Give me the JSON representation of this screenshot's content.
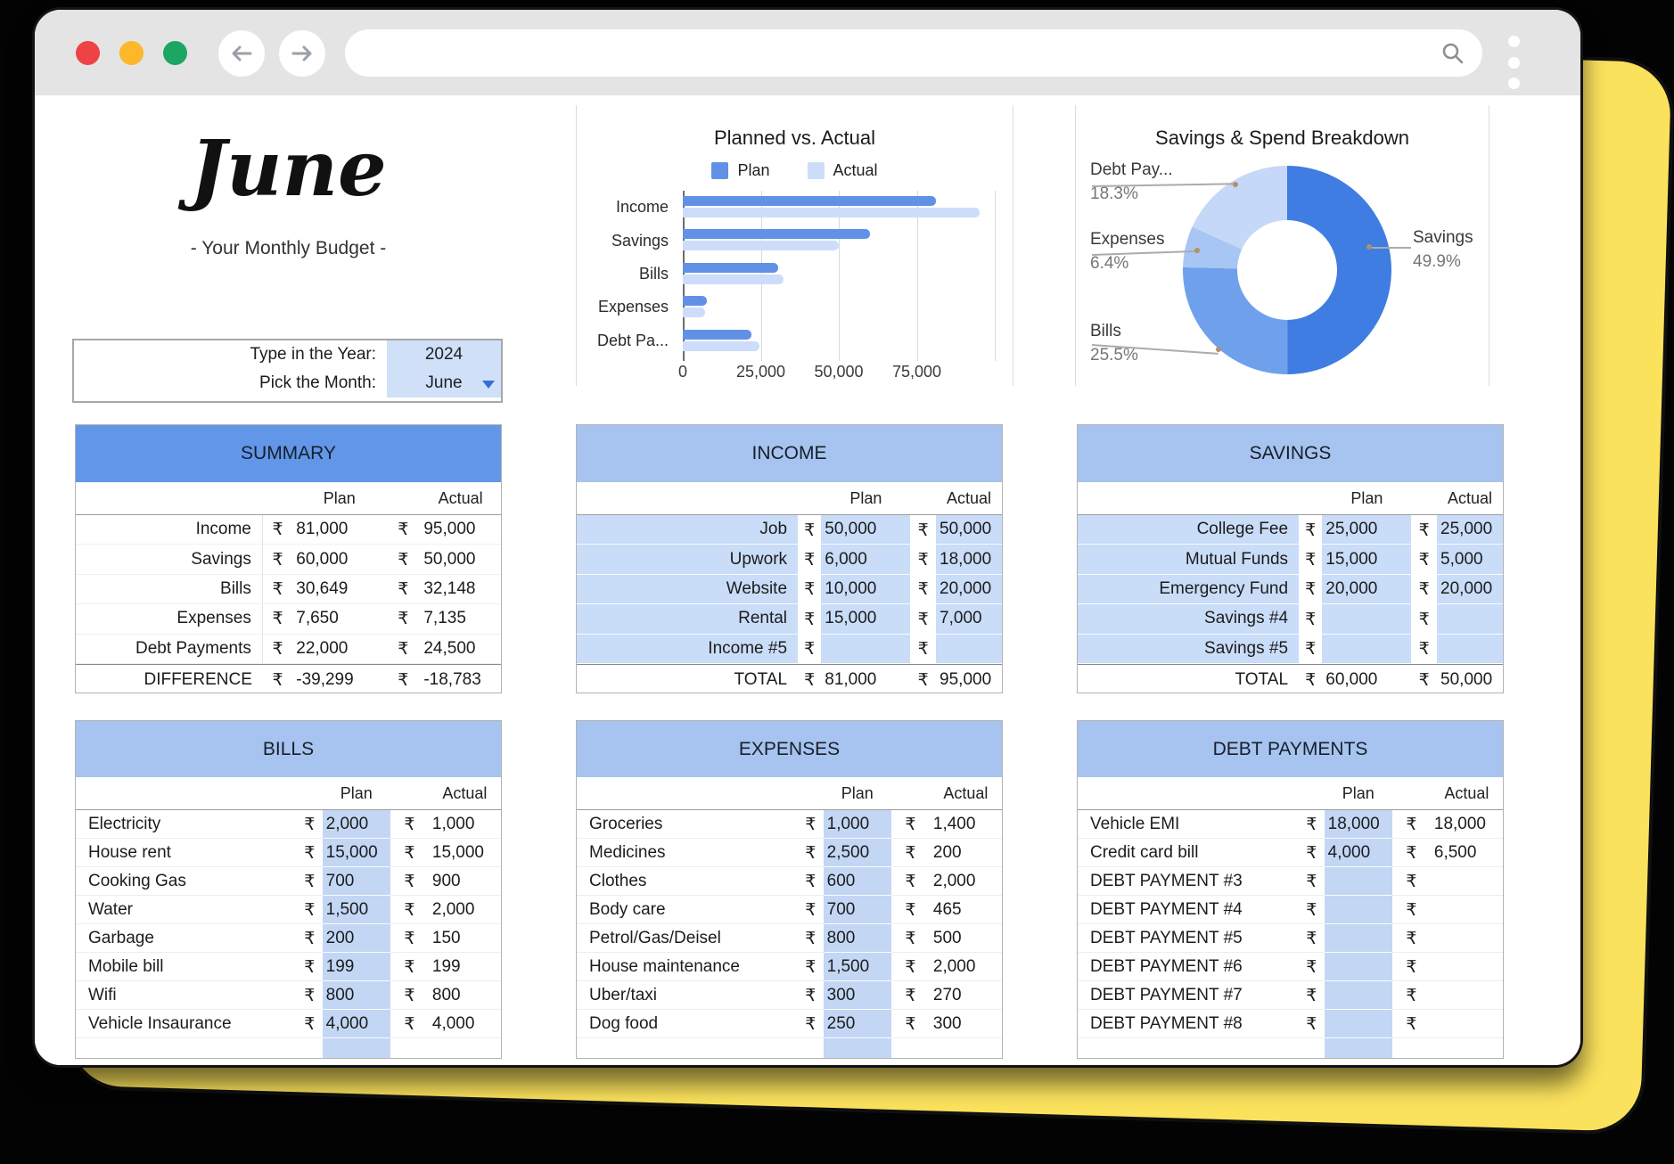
{
  "browser": {
    "url_value": "",
    "icons": {
      "back": "arrow-left-icon",
      "forward": "arrow-right-icon",
      "search": "search-icon",
      "menu": "vertical-dots-icon"
    }
  },
  "header": {
    "month_title": "June",
    "subtitle": "- Your Monthly Budget -",
    "year_label": "Type in the Year:",
    "year_value": "2024",
    "month_label": "Pick the Month:",
    "month_value": "June"
  },
  "currency": "₹",
  "chart_data": [
    {
      "type": "bar",
      "orientation": "horizontal",
      "title": "Planned vs. Actual",
      "categories": [
        "Income",
        "Savings",
        "Bills",
        "Expenses",
        "Debt Pa..."
      ],
      "series": [
        {
          "name": "Plan",
          "color": "#6191e6",
          "values": [
            81000,
            60000,
            30649,
            7650,
            22000
          ]
        },
        {
          "name": "Actual",
          "color": "#cdddf9",
          "values": [
            95000,
            50000,
            32148,
            7135,
            24500
          ]
        }
      ],
      "xlim": [
        0,
        100000
      ],
      "x_ticks": [
        0,
        25000,
        50000,
        75000
      ],
      "x_tick_labels": [
        "0",
        "25,000",
        "50,000",
        "75,000"
      ],
      "grid": true,
      "legend_position": "top"
    },
    {
      "type": "pie",
      "donut": true,
      "title": "Savings & Spend Breakdown",
      "slices": [
        {
          "label": "Savings",
          "pct": 49.9,
          "color": "#3f7de2"
        },
        {
          "label": "Bills",
          "pct": 25.5,
          "color": "#6fa0ec"
        },
        {
          "label": "Expenses",
          "pct": 6.4,
          "color": "#a8c6f3"
        },
        {
          "label": "Debt Pay...",
          "pct": 18.3,
          "color": "#c6d8f7"
        }
      ],
      "start_angle_deg": 0,
      "direction": "clockwise"
    }
  ],
  "tables": {
    "summary": {
      "title": "SUMMARY",
      "col_headers": [
        "Plan",
        "Actual"
      ],
      "rows": [
        [
          "Income",
          "81,000",
          "95,000"
        ],
        [
          "Savings",
          "60,000",
          "50,000"
        ],
        [
          "Bills",
          "30,649",
          "32,148"
        ],
        [
          "Expenses",
          "7,650",
          "7,135"
        ],
        [
          "Debt Payments",
          "22,000",
          "24,500"
        ]
      ],
      "footer": [
        "DIFFERENCE",
        "-39,299",
        "-18,783"
      ]
    },
    "income": {
      "title": "INCOME",
      "col_headers": [
        "Plan",
        "Actual"
      ],
      "rows": [
        [
          "Job",
          "50,000",
          "50,000"
        ],
        [
          "Upwork",
          "6,000",
          "18,000"
        ],
        [
          "Website",
          "10,000",
          "20,000"
        ],
        [
          "Rental",
          "15,000",
          "7,000"
        ],
        [
          "Income #5",
          "",
          ""
        ]
      ],
      "footer": [
        "TOTAL",
        "81,000",
        "95,000"
      ]
    },
    "savings": {
      "title": "SAVINGS",
      "col_headers": [
        "Plan",
        "Actual"
      ],
      "rows": [
        [
          "College Fee",
          "25,000",
          "25,000"
        ],
        [
          "Mutual Funds",
          "15,000",
          "5,000"
        ],
        [
          "Emergency Fund",
          "20,000",
          "20,000"
        ],
        [
          "Savings #4",
          "",
          ""
        ],
        [
          "Savings #5",
          "",
          ""
        ]
      ],
      "footer": [
        "TOTAL",
        "60,000",
        "50,000"
      ]
    },
    "bills": {
      "title": "BILLS",
      "col_headers": [
        "Plan",
        "Actual"
      ],
      "rows": [
        [
          "Electricity",
          "2,000",
          "1,000"
        ],
        [
          "House rent",
          "15,000",
          "15,000"
        ],
        [
          "Cooking Gas",
          "700",
          "900"
        ],
        [
          "Water",
          "1,500",
          "2,000"
        ],
        [
          "Garbage",
          "200",
          "150"
        ],
        [
          "Mobile bill",
          "199",
          "199"
        ],
        [
          "Wifi",
          "800",
          "800"
        ],
        [
          "Vehicle Insaurance",
          "4,000",
          "4,000"
        ]
      ]
    },
    "expenses": {
      "title": "EXPENSES",
      "col_headers": [
        "Plan",
        "Actual"
      ],
      "rows": [
        [
          "Groceries",
          "1,000",
          "1,400"
        ],
        [
          "Medicines",
          "2,500",
          "200"
        ],
        [
          "Clothes",
          "600",
          "2,000"
        ],
        [
          "Body care",
          "700",
          "465"
        ],
        [
          "Petrol/Gas/Deisel",
          "800",
          "500"
        ],
        [
          "House maintenance",
          "1,500",
          "2,000"
        ],
        [
          "Uber/taxi",
          "300",
          "270"
        ],
        [
          "Dog food",
          "250",
          "300"
        ]
      ]
    },
    "debt": {
      "title": "DEBT PAYMENTS",
      "col_headers": [
        "Plan",
        "Actual"
      ],
      "rows": [
        [
          "Vehicle EMI",
          "18,000",
          "18,000"
        ],
        [
          "Credit card bill",
          "4,000",
          "6,500"
        ],
        [
          "DEBT PAYMENT #3",
          "",
          ""
        ],
        [
          "DEBT PAYMENT #4",
          "",
          ""
        ],
        [
          "DEBT PAYMENT #5",
          "",
          ""
        ],
        [
          "DEBT PAYMENT #6",
          "",
          ""
        ],
        [
          "DEBT PAYMENT #7",
          "",
          ""
        ],
        [
          "DEBT PAYMENT #8",
          "",
          ""
        ]
      ]
    }
  }
}
